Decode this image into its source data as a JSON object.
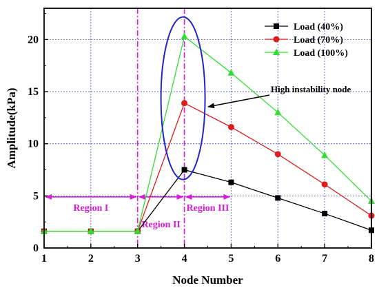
{
  "chart_data": {
    "type": "line",
    "xlabel": "Node Number",
    "ylabel": "Amplitude(kPa)",
    "xlim": [
      1,
      8
    ],
    "ylim": [
      0,
      23
    ],
    "xticks": [
      1,
      2,
      3,
      4,
      5,
      6,
      7,
      8
    ],
    "yticks": [
      0,
      5,
      10,
      15,
      20
    ],
    "grid": true,
    "legend_position": "top-right",
    "series": [
      {
        "name": "Load (40%)",
        "color": "#000000",
        "marker": "square",
        "x": [
          1,
          2,
          3,
          4,
          5,
          6,
          7,
          8
        ],
        "values": [
          1.6,
          1.6,
          1.6,
          7.5,
          6.3,
          4.8,
          3.3,
          1.7
        ]
      },
      {
        "name": "Load (70%)",
        "color": "#e01b1b",
        "marker": "circle",
        "x": [
          1,
          2,
          3,
          4,
          5,
          6,
          7,
          8
        ],
        "values": [
          1.6,
          1.6,
          1.6,
          13.9,
          11.6,
          9.0,
          6.1,
          3.1
        ]
      },
      {
        "name": "Load (100%)",
        "color": "#33dd33",
        "marker": "triangle",
        "x": [
          1,
          2,
          3,
          4,
          5,
          6,
          7,
          8
        ],
        "values": [
          1.6,
          1.6,
          1.6,
          20.3,
          16.8,
          13.0,
          8.9,
          4.5
        ]
      }
    ],
    "regions": [
      {
        "label": "Region I",
        "x_from": 1.0,
        "x_to": 3.0,
        "y": 4.9
      },
      {
        "label": "Region II",
        "x_from": 3.0,
        "x_to": 4.0,
        "y": 4.9
      },
      {
        "label": "Region III",
        "x_from": 4.0,
        "x_to": 5.0,
        "y": 4.9
      }
    ],
    "region_dividers_x": [
      3,
      4
    ],
    "annotation": {
      "text": "High instability node",
      "node": 4
    }
  }
}
